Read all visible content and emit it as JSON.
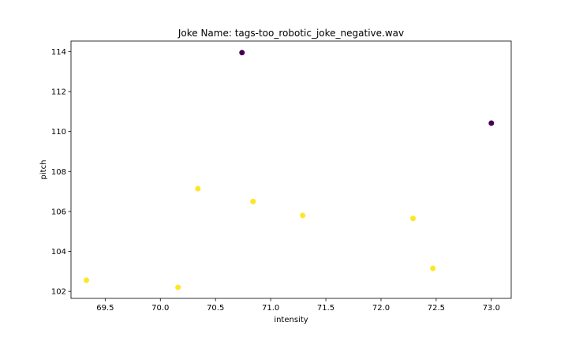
{
  "chart_data": {
    "type": "scatter",
    "title": "Joke Name: tags-too_robotic_joke_negative.wav",
    "xlabel": "intensity",
    "ylabel": "pitch",
    "xlim": [
      69.19,
      73.18
    ],
    "ylim": [
      101.65,
      114.53
    ],
    "xticks": [
      69.5,
      70.0,
      70.5,
      71.0,
      71.5,
      72.0,
      72.5,
      73.0
    ],
    "xtick_labels": [
      "69.5",
      "70.0",
      "70.5",
      "71.0",
      "71.5",
      "72.0",
      "72.5",
      "73.0"
    ],
    "yticks": [
      102,
      104,
      106,
      108,
      110,
      112,
      114
    ],
    "ytick_labels": [
      "102",
      "104",
      "106",
      "108",
      "110",
      "112",
      "114"
    ],
    "grid": false,
    "colors": {
      "class_0": "#440154",
      "class_1": "#fde725"
    },
    "points": [
      {
        "x": 70.74,
        "y": 113.95,
        "class": 0
      },
      {
        "x": 73.0,
        "y": 110.42,
        "class": 0
      },
      {
        "x": 70.34,
        "y": 107.14,
        "class": 1
      },
      {
        "x": 70.84,
        "y": 106.5,
        "class": 1
      },
      {
        "x": 71.29,
        "y": 105.8,
        "class": 1
      },
      {
        "x": 72.29,
        "y": 105.65,
        "class": 1
      },
      {
        "x": 72.47,
        "y": 103.15,
        "class": 1
      },
      {
        "x": 69.33,
        "y": 102.56,
        "class": 1
      },
      {
        "x": 70.16,
        "y": 102.2,
        "class": 1
      }
    ]
  }
}
